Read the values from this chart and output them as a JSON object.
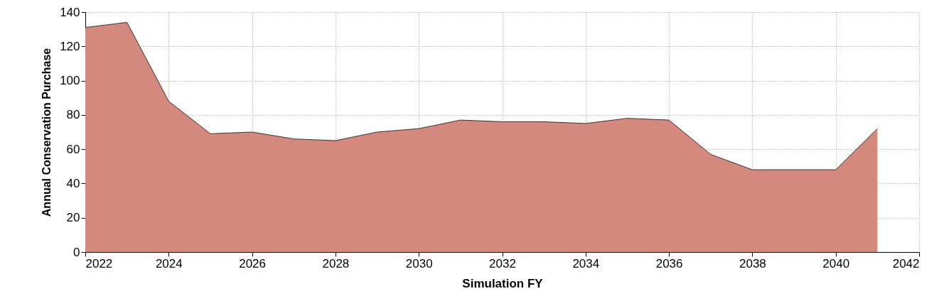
{
  "chart_data": {
    "type": "area",
    "xlabel": "Simulation FY",
    "ylabel": "Annual Conservation Purchase",
    "x": [
      2022,
      2023,
      2024,
      2025,
      2026,
      2027,
      2028,
      2029,
      2030,
      2031,
      2032,
      2033,
      2034,
      2035,
      2036,
      2037,
      2038,
      2039,
      2040,
      2041
    ],
    "series": [
      {
        "color": "#d4897e",
        "values": [
          131,
          134,
          88,
          69,
          70,
          66,
          65,
          70,
          72,
          77,
          76,
          76,
          75,
          78,
          77,
          57,
          48,
          48,
          48,
          72
        ]
      }
    ],
    "xlim": [
      2022,
      2042
    ],
    "xticks": [
      2022,
      2024,
      2026,
      2028,
      2030,
      2032,
      2034,
      2036,
      2038,
      2040,
      2042
    ],
    "ylim": [
      0,
      140
    ],
    "yticks": [
      0,
      20,
      40,
      60,
      80,
      100,
      120,
      140
    ],
    "grid": true
  }
}
